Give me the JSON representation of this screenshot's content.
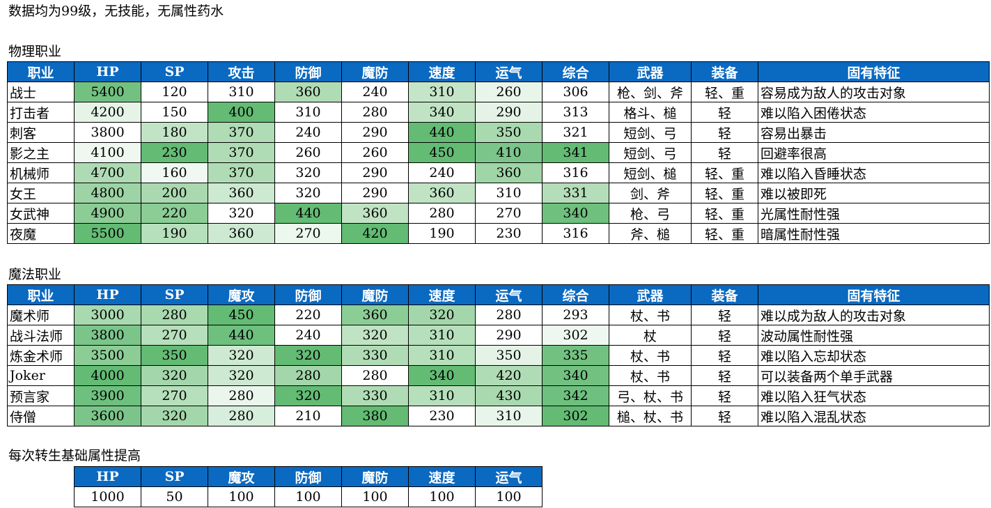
{
  "intro": "数据均为99级，无技能，无属性药水",
  "physical": {
    "title": "物理职业",
    "headers": [
      "职业",
      "HP",
      "SP",
      "攻击",
      "防御",
      "魔防",
      "速度",
      "运气",
      "综合",
      "武器",
      "装备",
      "固有特征"
    ],
    "rows": [
      [
        "战士",
        "5400",
        "120",
        "310",
        "360",
        "240",
        "310",
        "260",
        "306",
        "枪、剑、斧",
        "轻、重",
        "容易成为敌人的攻击对象"
      ],
      [
        "打击者",
        "4200",
        "150",
        "400",
        "310",
        "280",
        "340",
        "290",
        "313",
        "格斗、槌",
        "轻",
        "难以陷入困倦状态"
      ],
      [
        "刺客",
        "3800",
        "180",
        "370",
        "240",
        "290",
        "440",
        "350",
        "321",
        "短剑、弓",
        "轻",
        "容易出暴击"
      ],
      [
        "影之主",
        "4100",
        "230",
        "370",
        "260",
        "260",
        "450",
        "410",
        "341",
        "短剑、弓",
        "轻",
        "回避率很高"
      ],
      [
        "机械师",
        "4700",
        "160",
        "370",
        "320",
        "290",
        "240",
        "360",
        "316",
        "短剑、槌",
        "轻、重",
        "难以陷入昏睡状态"
      ],
      [
        "女王",
        "4800",
        "200",
        "360",
        "320",
        "290",
        "360",
        "310",
        "331",
        "剑、斧",
        "轻、重",
        "难以被即死"
      ],
      [
        "女武神",
        "4900",
        "220",
        "320",
        "440",
        "360",
        "280",
        "270",
        "340",
        "枪、弓",
        "轻、重",
        "光属性耐性强"
      ],
      [
        "夜魔",
        "5500",
        "190",
        "360",
        "270",
        "420",
        "190",
        "230",
        "316",
        "斧、槌",
        "轻、重",
        "暗属性耐性强"
      ]
    ],
    "heat": [
      [
        "",
        "#72c181",
        "#ffffff",
        "#ffffff",
        "#b0dcb5",
        "#ffffff",
        "#c5e5c9",
        "#e8f5ea",
        "#ffffff",
        "",
        "",
        ""
      ],
      [
        "",
        "#e6f4e8",
        "#ffffff",
        "#63bb74",
        "#ffffff",
        "#ffffff",
        "#c0e3c4",
        "#e4f3e6",
        "#ffffff",
        "",
        "",
        ""
      ],
      [
        "",
        "#ffffff",
        "#c2e4c6",
        "#b0dcb5",
        "#ffffff",
        "#ffffff",
        "#63bb74",
        "#a9d9af",
        "#ffffff",
        "",
        "",
        ""
      ],
      [
        "",
        "#eef8f0",
        "#63bb74",
        "#b0dcb5",
        "#ffffff",
        "#ffffff",
        "#63bb74",
        "#7bc58a",
        "#63bb74",
        "",
        "",
        ""
      ],
      [
        "",
        "#aedbb3",
        "#f0f9f1",
        "#b0dcb5",
        "#ffffff",
        "#ffffff",
        "#ffffff",
        "#a0d5a7",
        "#ffffff",
        "",
        "",
        ""
      ],
      [
        "",
        "#9ed4a5",
        "#aad9b0",
        "#cde9d1",
        "#ffffff",
        "#ffffff",
        "#c0e3c4",
        "#ffffff",
        "#b4ddb9",
        "",
        "",
        ""
      ],
      [
        "",
        "#8ccd96",
        "#8ccd96",
        "#ffffff",
        "#63bb74",
        "#c0e3c4",
        "#ffffff",
        "#ffffff",
        "#6fc07f",
        "",
        "",
        ""
      ],
      [
        "",
        "#63bb74",
        "#b6dfbb",
        "#cde9d1",
        "#ecf7ee",
        "#63bb74",
        "#ffffff",
        "#ffffff",
        "#ffffff",
        "",
        "",
        ""
      ]
    ]
  },
  "magic": {
    "title": "魔法职业",
    "headers": [
      "职业",
      "HP",
      "SP",
      "魔攻",
      "防御",
      "魔防",
      "速度",
      "运气",
      "综合",
      "武器",
      "装备",
      "固有特征"
    ],
    "rows": [
      [
        "魔术师",
        "3000",
        "280",
        "450",
        "220",
        "360",
        "320",
        "280",
        "293",
        "杖、书",
        "轻",
        "难以成为敌人的攻击对象"
      ],
      [
        "战斗法师",
        "3800",
        "270",
        "440",
        "240",
        "320",
        "310",
        "290",
        "302",
        "杖",
        "轻",
        "波动属性耐性强"
      ],
      [
        "炼金术师",
        "3500",
        "350",
        "320",
        "320",
        "330",
        "310",
        "350",
        "335",
        "杖、书",
        "轻",
        "难以陷入忘却状态"
      ],
      [
        "Joker",
        "4000",
        "320",
        "320",
        "280",
        "280",
        "340",
        "420",
        "340",
        "杖、书",
        "轻",
        "可以装备两个单手武器"
      ],
      [
        "预言家",
        "3900",
        "270",
        "280",
        "320",
        "330",
        "310",
        "430",
        "342",
        "弓、杖、书",
        "轻",
        "难以陷入狂气状态"
      ],
      [
        "侍僧",
        "3600",
        "320",
        "280",
        "210",
        "380",
        "230",
        "310",
        "302",
        "槌、杖、书",
        "轻",
        "难以陷入混乱状态"
      ]
    ],
    "heat": [
      [
        "",
        "#a9d9af",
        "#a9d9af",
        "#63bb74",
        "#ffffff",
        "#8ccd96",
        "#a3d6aa",
        "#ffffff",
        "#ffffff",
        "",
        "",
        ""
      ],
      [
        "",
        "#7bc58a",
        "#b6dfbb",
        "#6ec07e",
        "#ffffff",
        "#c0e3c4",
        "#b6dfbb",
        "#ffffff",
        "#eef8f0",
        "",
        "",
        ""
      ],
      [
        "",
        "#8ccd96",
        "#63bb74",
        "#cde9d1",
        "#63bb74",
        "#b0dcb5",
        "#b6dfbb",
        "#e4f3e6",
        "#72c181",
        "",
        "",
        ""
      ],
      [
        "",
        "#63bb74",
        "#a3d6aa",
        "#cde9d1",
        "#a3d6aa",
        "#ffffff",
        "#63bb74",
        "#b0dcb5",
        "#72c181",
        "",
        "",
        ""
      ],
      [
        "",
        "#6ec07e",
        "#b6dfbb",
        "#eaf6ec",
        "#63bb74",
        "#b0dcb5",
        "#b6dfbb",
        "#a9d9af",
        "#6ec07e",
        "",
        "",
        ""
      ],
      [
        "",
        "#7bc58a",
        "#a3d6aa",
        "#d6eedb",
        "#ffffff",
        "#63bb74",
        "#ffffff",
        "#e8f5ea",
        "#63bb74",
        "",
        "",
        ""
      ]
    ]
  },
  "rebirth": {
    "title": "每次转生基础属性提高",
    "headers": [
      "HP",
      "SP",
      "魔攻",
      "防御",
      "魔防",
      "速度",
      "运气"
    ],
    "values": [
      "1000",
      "50",
      "100",
      "100",
      "100",
      "100",
      "100"
    ]
  }
}
